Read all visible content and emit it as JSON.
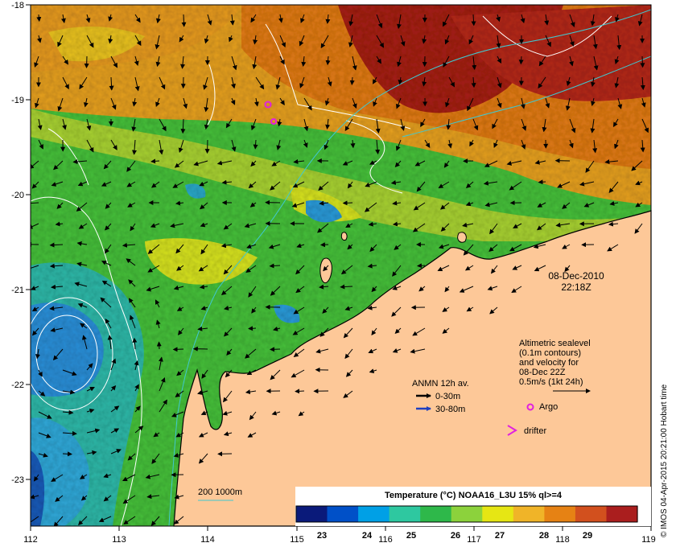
{
  "map": {
    "lon_ticks": [
      "112",
      "113",
      "114",
      "115",
      "116",
      "117",
      "118",
      "119"
    ],
    "lat_ticks": [
      "-18",
      "-19",
      "-20",
      "-21",
      "-22",
      "-23"
    ]
  },
  "datetime": {
    "date": "08-Dec-2010",
    "time": "22:18Z"
  },
  "altimetry": {
    "line1": "Altimetric sealevel",
    "line2": "(0.1m contours)",
    "line3": "and velocity for",
    "line4": "08-Dec 22Z",
    "line5": "0.5m/s (1kt 24h)"
  },
  "anmn": {
    "title": "ANMN 12h av.",
    "shallow": "0-30m",
    "deep": "30-80m",
    "shallow_color": "#000000",
    "deep_color": "#1f3fbf"
  },
  "markers": {
    "argo": "Argo",
    "drifter": "drifter",
    "argo_color": "#e020e0",
    "drifter_color": "#e020e0"
  },
  "isobath_label": "200  1000m",
  "colorbar": {
    "title": "Temperature (°C) NOAA16_L3U 15% ql>=4",
    "ticks": [
      "23",
      "24",
      "25",
      "26",
      "27",
      "28",
      "29"
    ],
    "colors": [
      "#0a1a7a",
      "#0050c8",
      "#00a0e6",
      "#2ec8a0",
      "#2eb84a",
      "#8cd23c",
      "#e6e614",
      "#f0b428",
      "#e68214",
      "#d2501e",
      "#aa1e1e"
    ]
  },
  "credit": "© IMOS 04-Apr-2015 20:21:00 Hobart time",
  "colors": {
    "land": "#fdc898",
    "coast": "#000000",
    "contour": "#ffffff",
    "isobath": "#40c8d0"
  }
}
